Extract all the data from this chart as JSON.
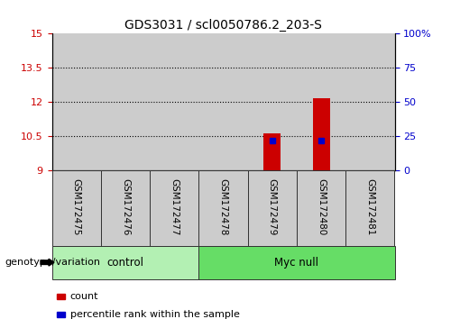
{
  "title": "GDS3031 / scl0050786.2_203-S",
  "samples": [
    "GSM172475",
    "GSM172476",
    "GSM172477",
    "GSM172478",
    "GSM172479",
    "GSM172480",
    "GSM172481"
  ],
  "control_indices": [
    0,
    1,
    2
  ],
  "myc_indices": [
    3,
    4,
    5,
    6
  ],
  "control_color": "#b3f0b3",
  "myc_color": "#66dd66",
  "sample_bg_color": "#cccccc",
  "sample_border_color": "#333333",
  "ylim_left": [
    9,
    15
  ],
  "ylim_right": [
    0,
    100
  ],
  "yticks_left": [
    9,
    10.5,
    12,
    13.5,
    15
  ],
  "yticks_right": [
    0,
    25,
    50,
    75,
    100
  ],
  "ytick_labels_left": [
    "9",
    "10.5",
    "12",
    "13.5",
    "15"
  ],
  "ytick_labels_right": [
    "0",
    "25",
    "50",
    "75",
    "100%"
  ],
  "left_tick_color": "#cc0000",
  "right_tick_color": "#0000cc",
  "grid_yticks": [
    10.5,
    12,
    13.5
  ],
  "bar_values": {
    "GSM172479": 10.65,
    "GSM172480": 12.18
  },
  "bar_base": 9,
  "bar_color": "#cc0000",
  "bar_width": 0.35,
  "percentile_values": {
    "GSM172479": 10.3,
    "GSM172480": 10.3
  },
  "percentile_color": "#0000cc",
  "percentile_marker_size": 5,
  "legend_count_color": "#cc0000",
  "legend_percentile_color": "#0000cc",
  "legend_count_label": "count",
  "legend_percentile_label": "percentile rank within the sample",
  "genotype_label": "genotype/variation",
  "control_label": "control",
  "myc_null_label": "Myc null",
  "title_fontsize": 10,
  "tick_fontsize": 8,
  "sample_fontsize": 7.5,
  "group_fontsize": 8.5,
  "legend_fontsize": 8,
  "genotype_fontsize": 8
}
